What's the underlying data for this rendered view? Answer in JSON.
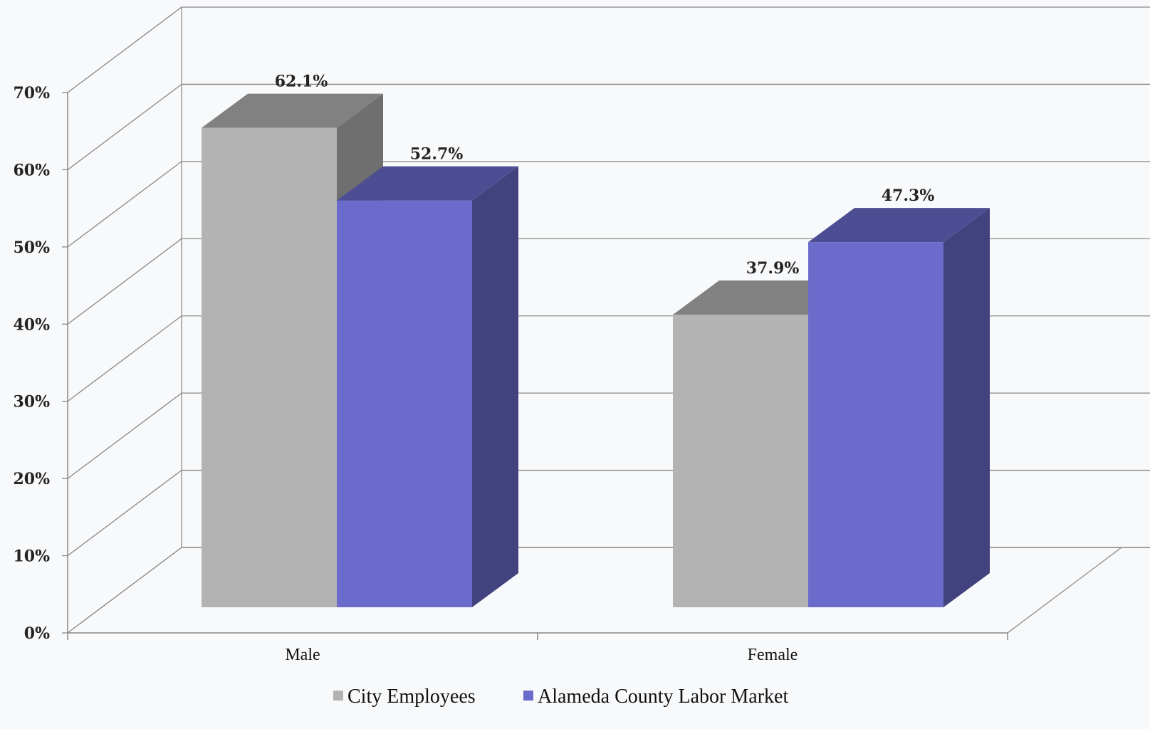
{
  "chart_data": {
    "type": "bar",
    "categories": [
      "Male",
      "Female"
    ],
    "series": [
      {
        "name": "City Employees",
        "values": [
          62.1,
          37.9
        ],
        "color": "#b3b3b3"
      },
      {
        "name": "Alameda County Labor Market",
        "values": [
          52.7,
          47.3
        ],
        "color": "#6b6bcc"
      }
    ],
    "data_labels": [
      [
        "62.1%",
        "37.9%"
      ],
      [
        "52.7%",
        "47.3%"
      ]
    ],
    "y_ticks": [
      "0%",
      "10%",
      "20%",
      "30%",
      "40%",
      "50%",
      "60%",
      "70%"
    ],
    "ylim": [
      0,
      70
    ],
    "grid": true,
    "three_d": true,
    "legend_position": "bottom",
    "title": "",
    "xlabel": "",
    "ylabel": ""
  }
}
